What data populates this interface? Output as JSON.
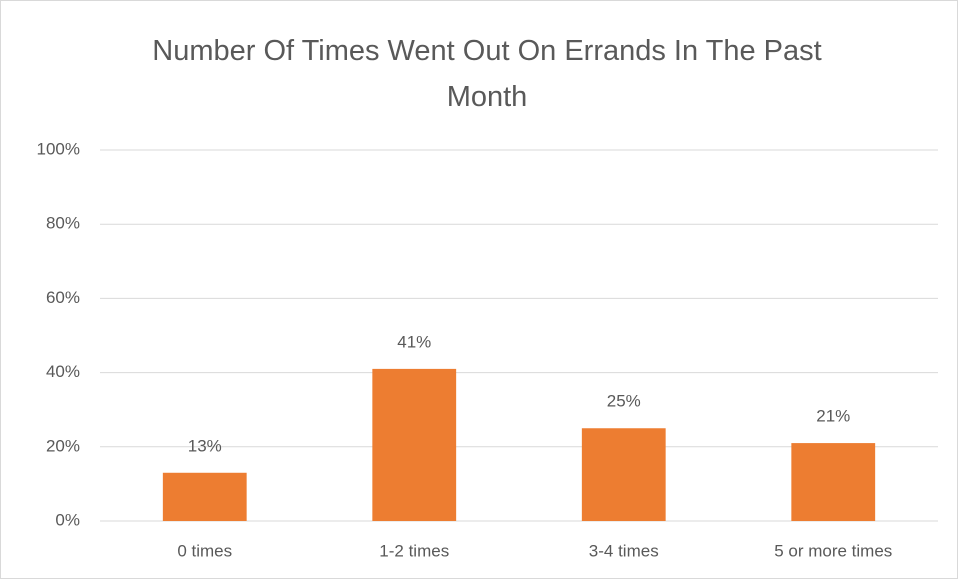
{
  "chart_data": {
    "type": "bar",
    "title": "Number Of Times Went Out On Errands In The Past Month",
    "categories": [
      "0 times",
      "1-2 times",
      "3-4 times",
      "5 or more times"
    ],
    "values": [
      13,
      41,
      25,
      21
    ],
    "value_labels": [
      "13%",
      "41%",
      "25%",
      "21%"
    ],
    "color": "#ed7d31",
    "ylim": [
      0,
      100
    ],
    "yticks": [
      {
        "value": 0,
        "label": "0%"
      },
      {
        "value": 20,
        "label": "20%"
      },
      {
        "value": 40,
        "label": "40%"
      },
      {
        "value": 60,
        "label": "60%"
      },
      {
        "value": 80,
        "label": "80%"
      },
      {
        "value": 100,
        "label": "100%"
      }
    ],
    "grid": true
  }
}
